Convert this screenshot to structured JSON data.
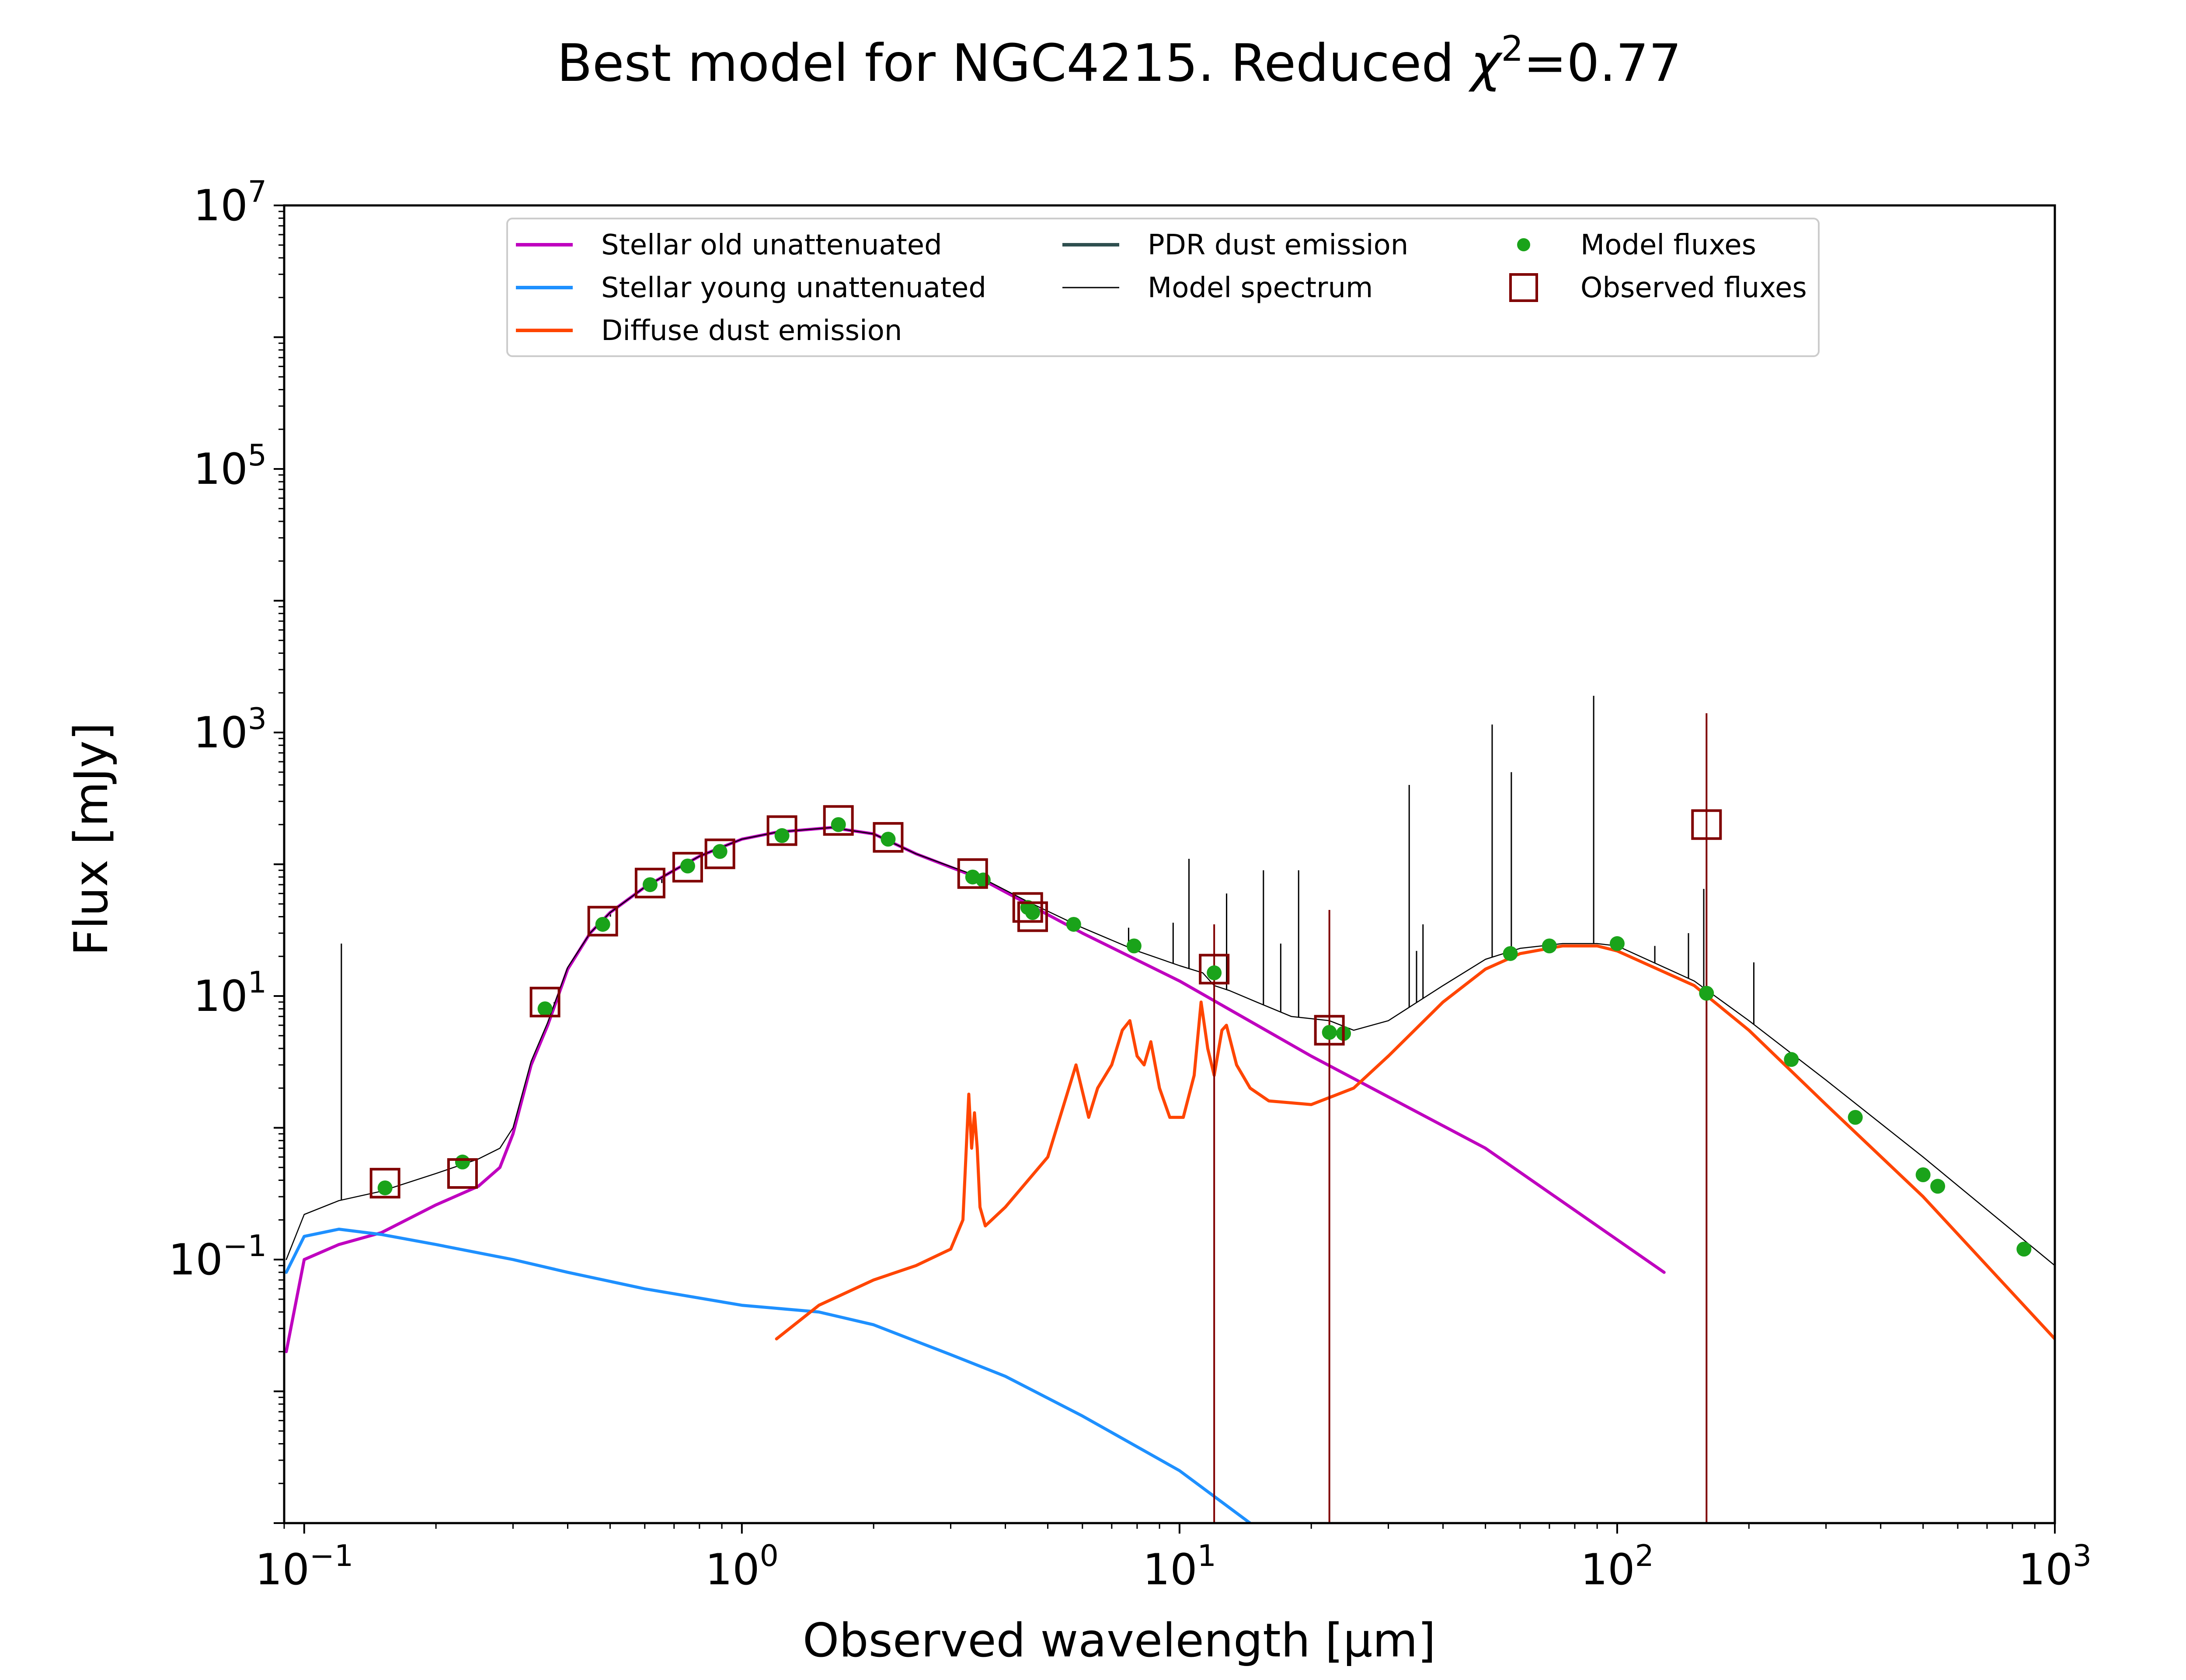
{
  "chart_data": {
    "type": "line",
    "title": "Best model for NGC4215. Reduced χ²=0.77",
    "title_main": "Best model for NGC4215. Reduced ",
    "title_chi": "χ",
    "title_sup": "2",
    "title_tail": "=0.77",
    "xlabel": "Observed wavelength [μm]",
    "ylabel": "Flux [mJy]",
    "x_scale": "log",
    "y_scale": "log",
    "xlim": [
      0.09,
      1000
    ],
    "ylim": [
      0.001,
      10000000
    ],
    "x_ticks": [
      {
        "value": 0.1,
        "base": "10",
        "exp": "−1"
      },
      {
        "value": 1,
        "base": "10",
        "exp": "0"
      },
      {
        "value": 10,
        "base": "10",
        "exp": "1"
      },
      {
        "value": 100,
        "base": "10",
        "exp": "2"
      },
      {
        "value": 1000,
        "base": "10",
        "exp": "3"
      }
    ],
    "y_ticks": [
      {
        "value": 0.1,
        "base": "10",
        "exp": "−1"
      },
      {
        "value": 10,
        "base": "10",
        "exp": "1"
      },
      {
        "value": 1000,
        "base": "10",
        "exp": "3"
      },
      {
        "value": 100000,
        "base": "10",
        "exp": "5"
      },
      {
        "value": 10000000,
        "base": "10",
        "exp": "7"
      }
    ],
    "grid": false,
    "legend_position": "top-center",
    "legend": [
      {
        "label": "Stellar old unattenuated",
        "kind": "line",
        "color": "#bf00bf"
      },
      {
        "label": "Stellar young unattenuated",
        "kind": "line",
        "color": "#1e90ff"
      },
      {
        "label": "Diffuse dust emission",
        "kind": "line",
        "color": "#ff4500"
      },
      {
        "label": "PDR dust emission",
        "kind": "line",
        "color": "#2f4f4f"
      },
      {
        "label": "Model spectrum",
        "kind": "thinline",
        "color": "#000000"
      },
      {
        "label": "Model fluxes",
        "kind": "dot",
        "color": "#1aa31a"
      },
      {
        "label": "Observed fluxes",
        "kind": "square",
        "color": "#800000"
      }
    ],
    "series": [
      {
        "name": "Stellar old unattenuated",
        "color": "#bf00bf",
        "width": 7,
        "x": [
          0.091,
          0.1,
          0.12,
          0.15,
          0.2,
          0.25,
          0.28,
          0.3,
          0.33,
          0.36,
          0.4,
          0.45,
          0.5,
          0.6,
          0.7,
          0.8,
          0.9,
          1.0,
          1.2,
          1.6,
          2.0,
          2.5,
          3.0,
          3.5,
          4.5,
          6.0,
          10,
          20,
          50,
          128
        ],
        "y": [
          0.02,
          0.1,
          0.13,
          0.16,
          0.26,
          0.36,
          0.5,
          0.9,
          3.0,
          6.0,
          16,
          30,
          43,
          67,
          90,
          115,
          135,
          155,
          175,
          190,
          170,
          120,
          95,
          78,
          50,
          30,
          13,
          3.5,
          0.7,
          0.08
        ]
      },
      {
        "name": "Stellar young unattenuated",
        "color": "#1e90ff",
        "width": 7,
        "x": [
          0.091,
          0.1,
          0.12,
          0.15,
          0.2,
          0.3,
          0.4,
          0.6,
          1.0,
          1.5,
          2.0,
          2.5,
          3.0,
          4.0,
          6.0,
          10,
          14.5
        ],
        "y": [
          0.08,
          0.15,
          0.17,
          0.155,
          0.13,
          0.1,
          0.08,
          0.06,
          0.045,
          0.04,
          0.032,
          0.024,
          0.019,
          0.013,
          0.0065,
          0.0025,
          0.001
        ]
      },
      {
        "name": "Diffuse dust emission",
        "color": "#ff4500",
        "width": 7,
        "x": [
          1.2,
          1.5,
          2.0,
          2.5,
          3.0,
          3.2,
          3.3,
          3.35,
          3.4,
          3.45,
          3.5,
          3.6,
          4.0,
          5.0,
          5.8,
          6.2,
          6.5,
          7.0,
          7.4,
          7.7,
          8.0,
          8.3,
          8.6,
          9.0,
          9.5,
          10.2,
          10.8,
          11.2,
          11.6,
          12.0,
          12.5,
          12.8,
          13.5,
          14.5,
          16,
          20,
          25,
          30,
          40,
          50,
          60,
          75,
          90,
          100,
          150,
          200,
          300,
          500,
          1000
        ],
        "y": [
          0.025,
          0.045,
          0.07,
          0.09,
          0.12,
          0.2,
          1.8,
          0.7,
          1.3,
          0.7,
          0.25,
          0.18,
          0.25,
          0.6,
          3.0,
          1.2,
          2.0,
          3.0,
          5.5,
          6.5,
          3.5,
          3.0,
          4.5,
          2.0,
          1.2,
          1.2,
          2.5,
          9.0,
          4.0,
          2.5,
          5.5,
          6.0,
          3.0,
          2.0,
          1.6,
          1.5,
          2.0,
          3.5,
          9.0,
          16,
          21,
          24,
          24,
          22,
          12,
          5.5,
          1.5,
          0.3,
          0.025
        ]
      },
      {
        "name": "Model spectrum",
        "color": "#000000",
        "width": 2.5,
        "x": [
          0.091,
          0.1,
          0.12,
          0.15,
          0.2,
          0.25,
          0.28,
          0.3,
          0.33,
          0.36,
          0.4,
          0.45,
          0.5,
          0.6,
          0.7,
          0.8,
          0.9,
          1.0,
          1.2,
          1.6,
          2.0,
          2.5,
          3.0,
          3.5,
          4.5,
          6.0,
          8.0,
          10,
          11.3,
          12,
          13,
          15,
          18,
          22,
          25,
          30,
          40,
          50,
          60,
          75,
          90,
          100,
          150,
          200,
          300,
          500,
          1000
        ],
        "y": [
          0.1,
          0.22,
          0.28,
          0.33,
          0.45,
          0.58,
          0.7,
          1.0,
          3.2,
          6.3,
          16.5,
          30,
          43,
          67,
          90,
          115,
          135,
          155,
          175,
          190,
          170,
          120,
          96,
          80,
          52,
          33,
          22,
          17,
          15,
          12,
          11,
          9,
          7,
          6.5,
          5.5,
          6.5,
          12,
          19,
          23,
          25,
          25,
          24,
          13,
          6.5,
          2.3,
          0.6,
          0.09
        ]
      }
    ],
    "emission_lines": [
      {
        "x": 0.1216,
        "top": 25
      },
      {
        "x": 0.3727,
        "top": 9
      },
      {
        "x": 0.5007,
        "top": 40
      },
      {
        "x": 0.6563,
        "top": 72
      },
      {
        "x": 7.65,
        "top": 33
      },
      {
        "x": 9.67,
        "top": 36
      },
      {
        "x": 10.51,
        "top": 110
      },
      {
        "x": 12.81,
        "top": 60
      },
      {
        "x": 15.55,
        "top": 90
      },
      {
        "x": 17.03,
        "top": 25
      },
      {
        "x": 18.71,
        "top": 90
      },
      {
        "x": 33.48,
        "top": 400
      },
      {
        "x": 34.8,
        "top": 22
      },
      {
        "x": 36.0,
        "top": 35
      },
      {
        "x": 51.8,
        "top": 1150
      },
      {
        "x": 57.3,
        "top": 500
      },
      {
        "x": 88.36,
        "top": 1900
      },
      {
        "x": 121.9,
        "top": 24
      },
      {
        "x": 145.5,
        "top": 30
      },
      {
        "x": 157.7,
        "top": 65
      },
      {
        "x": 205.2,
        "top": 18
      }
    ],
    "model_fluxes": {
      "x": [
        0.153,
        0.23,
        0.355,
        0.481,
        0.617,
        0.752,
        0.891,
        1.235,
        1.662,
        2.159,
        3.368,
        3.56,
        4.5,
        4.618,
        5.73,
        7.872,
        12.0,
        22.0,
        23.7,
        57,
        70,
        100,
        160,
        250,
        350,
        500,
        540,
        850
      ],
      "y": [
        0.35,
        0.55,
        8.0,
        35,
        70,
        97,
        125,
        165,
        200,
        155,
        80,
        76,
        47,
        43,
        35,
        24,
        15,
        5.3,
        5.2,
        21,
        24,
        25,
        10.5,
        3.3,
        1.2,
        0.44,
        0.36,
        0.12
      ]
    },
    "observed_fluxes": {
      "x": [
        0.153,
        0.23,
        0.355,
        0.481,
        0.617,
        0.752,
        0.891,
        1.235,
        1.662,
        2.159,
        3.368,
        4.5,
        4.618,
        12.0,
        22.0,
        160
      ],
      "y": [
        0.38,
        0.45,
        9.0,
        37,
        72,
        95,
        120,
        180,
        215,
        160,
        85,
        47,
        40,
        16,
        5.5,
        200
      ],
      "err_upper": [
        null,
        null,
        null,
        null,
        null,
        null,
        null,
        null,
        null,
        null,
        null,
        null,
        null,
        35,
        45,
        1400
      ],
      "err_lower": [
        null,
        null,
        null,
        null,
        null,
        null,
        null,
        null,
        null,
        null,
        null,
        null,
        null,
        0.001,
        0.001,
        0.001
      ]
    }
  }
}
